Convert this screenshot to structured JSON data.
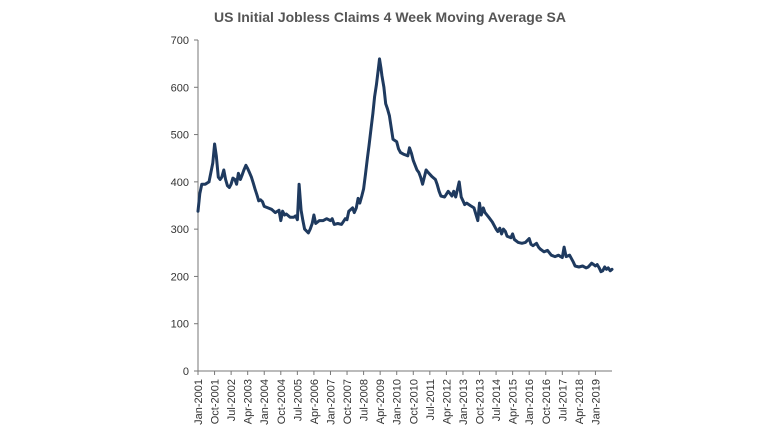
{
  "chart_data": {
    "type": "line",
    "title": "US Initial Jobless Claims 4 Week Moving Average SA",
    "xlabel": "",
    "ylabel": "",
    "ylim": [
      0,
      700
    ],
    "yticks": [
      0,
      100,
      200,
      300,
      400,
      500,
      600,
      700
    ],
    "xlim": [
      2001.0,
      2019.75
    ],
    "xtick_labels": [
      {
        "label": "Jan-2001",
        "x": 2001.0
      },
      {
        "label": "Oct-2001",
        "x": 2001.75
      },
      {
        "label": "Jul-2002",
        "x": 2002.5
      },
      {
        "label": "Apr-2003",
        "x": 2003.25
      },
      {
        "label": "Jan-2004",
        "x": 2004.0
      },
      {
        "label": "Oct-2004",
        "x": 2004.75
      },
      {
        "label": "Jul-2005",
        "x": 2005.5
      },
      {
        "label": "Apr-2006",
        "x": 2006.25
      },
      {
        "label": "Jan-2007",
        "x": 2007.0
      },
      {
        "label": "Oct-2007",
        "x": 2007.75
      },
      {
        "label": "Jul-2008",
        "x": 2008.5
      },
      {
        "label": "Apr-2009",
        "x": 2009.25
      },
      {
        "label": "Jan-2010",
        "x": 2010.0
      },
      {
        "label": "Oct-2010",
        "x": 2010.75
      },
      {
        "label": "Jul-2011",
        "x": 2011.5
      },
      {
        "label": "Apr-2012",
        "x": 2012.25
      },
      {
        "label": "Jan-2013",
        "x": 2013.0
      },
      {
        "label": "Oct-2013",
        "x": 2013.75
      },
      {
        "label": "Jul-2014",
        "x": 2014.5
      },
      {
        "label": "Apr-2015",
        "x": 2015.25
      },
      {
        "label": "Jan-2016",
        "x": 2016.0
      },
      {
        "label": "Oct-2016",
        "x": 2016.75
      },
      {
        "label": "Jul-2017",
        "x": 2017.5
      },
      {
        "label": "Apr-2018",
        "x": 2018.25
      },
      {
        "label": "Jan-2019",
        "x": 2019.0
      }
    ],
    "grid": false,
    "legend": "none",
    "series": [
      {
        "color": "#1f3a5f",
        "points": [
          [
            2001.0,
            338
          ],
          [
            2001.08,
            375
          ],
          [
            2001.17,
            395
          ],
          [
            2001.33,
            395
          ],
          [
            2001.5,
            400
          ],
          [
            2001.67,
            440
          ],
          [
            2001.75,
            480
          ],
          [
            2001.83,
            455
          ],
          [
            2001.92,
            410
          ],
          [
            2002.0,
            405
          ],
          [
            2002.08,
            410
          ],
          [
            2002.17,
            425
          ],
          [
            2002.25,
            405
          ],
          [
            2002.33,
            392
          ],
          [
            2002.42,
            388
          ],
          [
            2002.5,
            395
          ],
          [
            2002.58,
            408
          ],
          [
            2002.67,
            405
          ],
          [
            2002.75,
            395
          ],
          [
            2002.83,
            418
          ],
          [
            2002.92,
            405
          ],
          [
            2003.0,
            415
          ],
          [
            2003.08,
            425
          ],
          [
            2003.17,
            435
          ],
          [
            2003.25,
            428
          ],
          [
            2003.33,
            420
          ],
          [
            2003.42,
            410
          ],
          [
            2003.5,
            398
          ],
          [
            2003.58,
            385
          ],
          [
            2003.67,
            372
          ],
          [
            2003.75,
            360
          ],
          [
            2003.83,
            362
          ],
          [
            2003.92,
            358
          ],
          [
            2004.0,
            348
          ],
          [
            2004.17,
            345
          ],
          [
            2004.33,
            342
          ],
          [
            2004.5,
            335
          ],
          [
            2004.67,
            340
          ],
          [
            2004.75,
            318
          ],
          [
            2004.83,
            338
          ],
          [
            2004.92,
            330
          ],
          [
            2005.0,
            332
          ],
          [
            2005.17,
            325
          ],
          [
            2005.33,
            325
          ],
          [
            2005.42,
            328
          ],
          [
            2005.5,
            320
          ],
          [
            2005.58,
            395
          ],
          [
            2005.67,
            340
          ],
          [
            2005.75,
            318
          ],
          [
            2005.83,
            300
          ],
          [
            2006.0,
            292
          ],
          [
            2006.08,
            300
          ],
          [
            2006.17,
            312
          ],
          [
            2006.25,
            330
          ],
          [
            2006.33,
            312
          ],
          [
            2006.5,
            318
          ],
          [
            2006.67,
            318
          ],
          [
            2006.83,
            322
          ],
          [
            2007.0,
            318
          ],
          [
            2007.08,
            322
          ],
          [
            2007.17,
            310
          ],
          [
            2007.33,
            312
          ],
          [
            2007.5,
            310
          ],
          [
            2007.67,
            322
          ],
          [
            2007.75,
            320
          ],
          [
            2007.83,
            338
          ],
          [
            2008.0,
            345
          ],
          [
            2008.08,
            335
          ],
          [
            2008.17,
            345
          ],
          [
            2008.25,
            365
          ],
          [
            2008.33,
            355
          ],
          [
            2008.42,
            370
          ],
          [
            2008.5,
            385
          ],
          [
            2008.58,
            415
          ],
          [
            2008.67,
            450
          ],
          [
            2008.75,
            478
          ],
          [
            2008.83,
            510
          ],
          [
            2008.92,
            545
          ],
          [
            2009.0,
            580
          ],
          [
            2009.08,
            605
          ],
          [
            2009.17,
            640
          ],
          [
            2009.22,
            660
          ],
          [
            2009.29,
            640
          ],
          [
            2009.33,
            625
          ],
          [
            2009.42,
            600
          ],
          [
            2009.5,
            565
          ],
          [
            2009.58,
            555
          ],
          [
            2009.67,
            540
          ],
          [
            2009.75,
            515
          ],
          [
            2009.83,
            490
          ],
          [
            2010.0,
            485
          ],
          [
            2010.08,
            470
          ],
          [
            2010.17,
            462
          ],
          [
            2010.33,
            458
          ],
          [
            2010.5,
            455
          ],
          [
            2010.58,
            472
          ],
          [
            2010.67,
            460
          ],
          [
            2010.75,
            445
          ],
          [
            2010.92,
            425
          ],
          [
            2011.0,
            420
          ],
          [
            2011.08,
            410
          ],
          [
            2011.17,
            395
          ],
          [
            2011.33,
            425
          ],
          [
            2011.42,
            420
          ],
          [
            2011.58,
            412
          ],
          [
            2011.75,
            405
          ],
          [
            2011.83,
            395
          ],
          [
            2011.92,
            380
          ],
          [
            2012.0,
            370
          ],
          [
            2012.17,
            368
          ],
          [
            2012.33,
            380
          ],
          [
            2012.42,
            375
          ],
          [
            2012.5,
            370
          ],
          [
            2012.58,
            380
          ],
          [
            2012.67,
            368
          ],
          [
            2012.83,
            400
          ],
          [
            2012.92,
            368
          ],
          [
            2013.0,
            360
          ],
          [
            2013.08,
            352
          ],
          [
            2013.17,
            355
          ],
          [
            2013.33,
            350
          ],
          [
            2013.5,
            345
          ],
          [
            2013.58,
            332
          ],
          [
            2013.67,
            318
          ],
          [
            2013.75,
            355
          ],
          [
            2013.83,
            330
          ],
          [
            2013.92,
            345
          ],
          [
            2014.0,
            335
          ],
          [
            2014.17,
            325
          ],
          [
            2014.33,
            315
          ],
          [
            2014.5,
            300
          ],
          [
            2014.58,
            295
          ],
          [
            2014.67,
            302
          ],
          [
            2014.75,
            290
          ],
          [
            2014.83,
            300
          ],
          [
            2014.92,
            295
          ],
          [
            2015.0,
            285
          ],
          [
            2015.17,
            282
          ],
          [
            2015.25,
            290
          ],
          [
            2015.33,
            278
          ],
          [
            2015.5,
            272
          ],
          [
            2015.67,
            270
          ],
          [
            2015.83,
            272
          ],
          [
            2016.0,
            280
          ],
          [
            2016.08,
            268
          ],
          [
            2016.17,
            265
          ],
          [
            2016.33,
            270
          ],
          [
            2016.42,
            262
          ],
          [
            2016.5,
            258
          ],
          [
            2016.67,
            252
          ],
          [
            2016.83,
            255
          ],
          [
            2017.0,
            245
          ],
          [
            2017.17,
            242
          ],
          [
            2017.33,
            245
          ],
          [
            2017.42,
            242
          ],
          [
            2017.5,
            240
          ],
          [
            2017.58,
            262
          ],
          [
            2017.67,
            242
          ],
          [
            2017.83,
            245
          ],
          [
            2018.0,
            230
          ],
          [
            2018.08,
            222
          ],
          [
            2018.25,
            220
          ],
          [
            2018.42,
            222
          ],
          [
            2018.58,
            218
          ],
          [
            2018.67,
            220
          ],
          [
            2018.83,
            228
          ],
          [
            2018.92,
            225
          ],
          [
            2019.0,
            222
          ],
          [
            2019.08,
            225
          ],
          [
            2019.17,
            218
          ],
          [
            2019.25,
            210
          ],
          [
            2019.33,
            212
          ],
          [
            2019.42,
            220
          ],
          [
            2019.5,
            215
          ],
          [
            2019.58,
            218
          ],
          [
            2019.67,
            212
          ],
          [
            2019.75,
            215
          ]
        ]
      }
    ]
  }
}
